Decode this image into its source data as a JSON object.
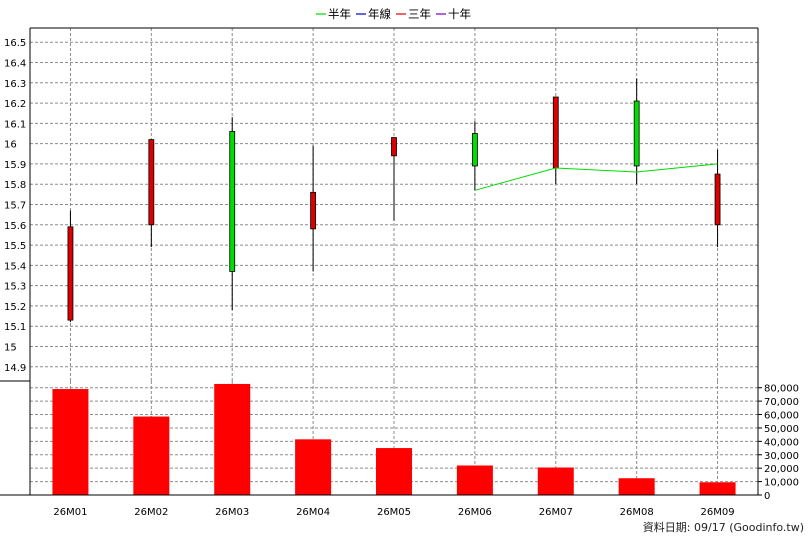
{
  "chart_data": {
    "type": "candlestick",
    "categories": [
      "26M01",
      "26M02",
      "26M03",
      "26M04",
      "26M05",
      "26M06",
      "26M07",
      "26M08",
      "26M09"
    ],
    "legend": [
      {
        "label": "半年",
        "color": "#00dd00"
      },
      {
        "label": "年線",
        "color": "#0000cc"
      },
      {
        "label": "三年",
        "color": "#dd0000"
      },
      {
        "label": "十年",
        "color": "#7700cc"
      }
    ],
    "price_axis": {
      "ylim": [
        14.83,
        15.57
      ],
      "ticks": [
        "14.9",
        "15",
        "15.1",
        "15.2",
        "15.3",
        "15.4",
        "15.5",
        "15.6",
        "15.7",
        "15.8",
        "15.9",
        "16",
        "16.1",
        "16.2",
        "16.3",
        "16.4",
        "16.5"
      ],
      "tick_values": [
        14.9,
        15,
        15.1,
        15.2,
        15.3,
        15.4,
        15.5,
        15.6,
        15.7,
        15.8,
        15.9,
        16,
        16.1,
        16.2,
        16.3,
        16.4,
        16.5
      ],
      "grid": true
    },
    "candles": [
      {
        "open": 15.59,
        "high": 15.67,
        "low": 15.12,
        "close": 15.13
      },
      {
        "open": 16.02,
        "high": 16.02,
        "low": 15.49,
        "close": 15.6
      },
      {
        "open": 15.37,
        "high": 16.13,
        "low": 15.18,
        "close": 16.06
      },
      {
        "open": 15.76,
        "high": 15.99,
        "low": 15.37,
        "close": 15.58
      },
      {
        "open": 16.03,
        "high": 16.03,
        "low": 15.62,
        "close": 15.94
      },
      {
        "open": 15.89,
        "high": 16.11,
        "low": 15.77,
        "close": 16.05
      },
      {
        "open": 16.23,
        "high": 16.23,
        "low": 15.8,
        "close": 15.88
      },
      {
        "open": 15.89,
        "high": 16.32,
        "low": 15.8,
        "close": 16.21
      },
      {
        "open": 15.85,
        "high": 15.97,
        "low": 15.49,
        "close": 15.6
      }
    ],
    "up_color": "#00dd00",
    "down_color": "#dd0000",
    "ma_half_year": {
      "name": "半年",
      "color": "#00dd00",
      "values": [
        null,
        null,
        null,
        null,
        null,
        15.77,
        15.88,
        15.86,
        15.9
      ]
    },
    "volume_axis": {
      "ylim": [
        0,
        80000
      ],
      "ticks": [
        "0",
        "10,000",
        "20,000",
        "30,000",
        "40,000",
        "50,000",
        "60,000",
        "70,000",
        "80,000"
      ],
      "tick_values": [
        0,
        10000,
        20000,
        30000,
        40000,
        50000,
        60000,
        70000,
        80000
      ]
    },
    "volume": [
      79000,
      58500,
      82800,
      41500,
      35000,
      22000,
      20500,
      12500,
      9500
    ],
    "volume_color": "#ff0000"
  },
  "source_text": "資料日期: 09/17  (Goodinfo.tw)"
}
